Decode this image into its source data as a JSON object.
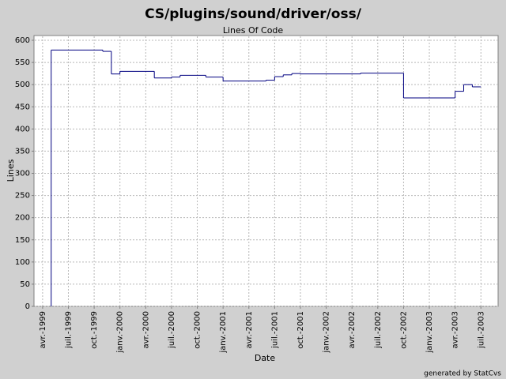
{
  "chart_data": {
    "type": "step-line",
    "title": "CS/plugins/sound/driver/oss/",
    "subtitle": "Lines Of Code",
    "x_label": "Date",
    "y_label": "Lines",
    "footer": "generated by StatCvs",
    "x": [
      "1999-05",
      "1999-05",
      "1999-11",
      "1999-12",
      "2000-01",
      "2000-05",
      "2000-07",
      "2000-08",
      "2000-11",
      "2001-01",
      "2001-06",
      "2001-07",
      "2001-08",
      "2001-09",
      "2001-10",
      "2002-05",
      "2002-10",
      "2003-04",
      "2003-05",
      "2003-06",
      "2003-07"
    ],
    "series": [
      {
        "name": "Lines",
        "color": "#000080",
        "values": [
          0,
          578,
          575,
          524,
          530,
          515,
          517,
          521,
          517,
          508,
          510,
          518,
          522,
          525,
          524,
          526,
          470,
          485,
          500,
          495,
          495
        ]
      }
    ],
    "xlim": [
      "1999-03",
      "2003-09"
    ],
    "xticks": [
      {
        "value": "1999-04",
        "label": "avr.-1999"
      },
      {
        "value": "1999-07",
        "label": "juil.-1999"
      },
      {
        "value": "1999-10",
        "label": "oct.-1999"
      },
      {
        "value": "2000-01",
        "label": "janv.-2000"
      },
      {
        "value": "2000-04",
        "label": "avr.-2000"
      },
      {
        "value": "2000-07",
        "label": "juil.-2000"
      },
      {
        "value": "2000-10",
        "label": "oct.-2000"
      },
      {
        "value": "2001-01",
        "label": "janv.-2001"
      },
      {
        "value": "2001-04",
        "label": "avr.-2001"
      },
      {
        "value": "2001-07",
        "label": "juil.-2001"
      },
      {
        "value": "2001-10",
        "label": "oct.-2001"
      },
      {
        "value": "2002-01",
        "label": "janv.-2002"
      },
      {
        "value": "2002-04",
        "label": "avr.-2002"
      },
      {
        "value": "2002-07",
        "label": "juil.-2002"
      },
      {
        "value": "2002-10",
        "label": "oct.-2002"
      },
      {
        "value": "2003-01",
        "label": "janv.-2003"
      },
      {
        "value": "2003-04",
        "label": "avr.-2003"
      },
      {
        "value": "2003-07",
        "label": "juil.-2003"
      }
    ],
    "ylim": [
      0,
      600
    ],
    "yticks": [
      0,
      50,
      100,
      150,
      200,
      250,
      300,
      350,
      400,
      450,
      500,
      550,
      600
    ],
    "grid": true
  }
}
